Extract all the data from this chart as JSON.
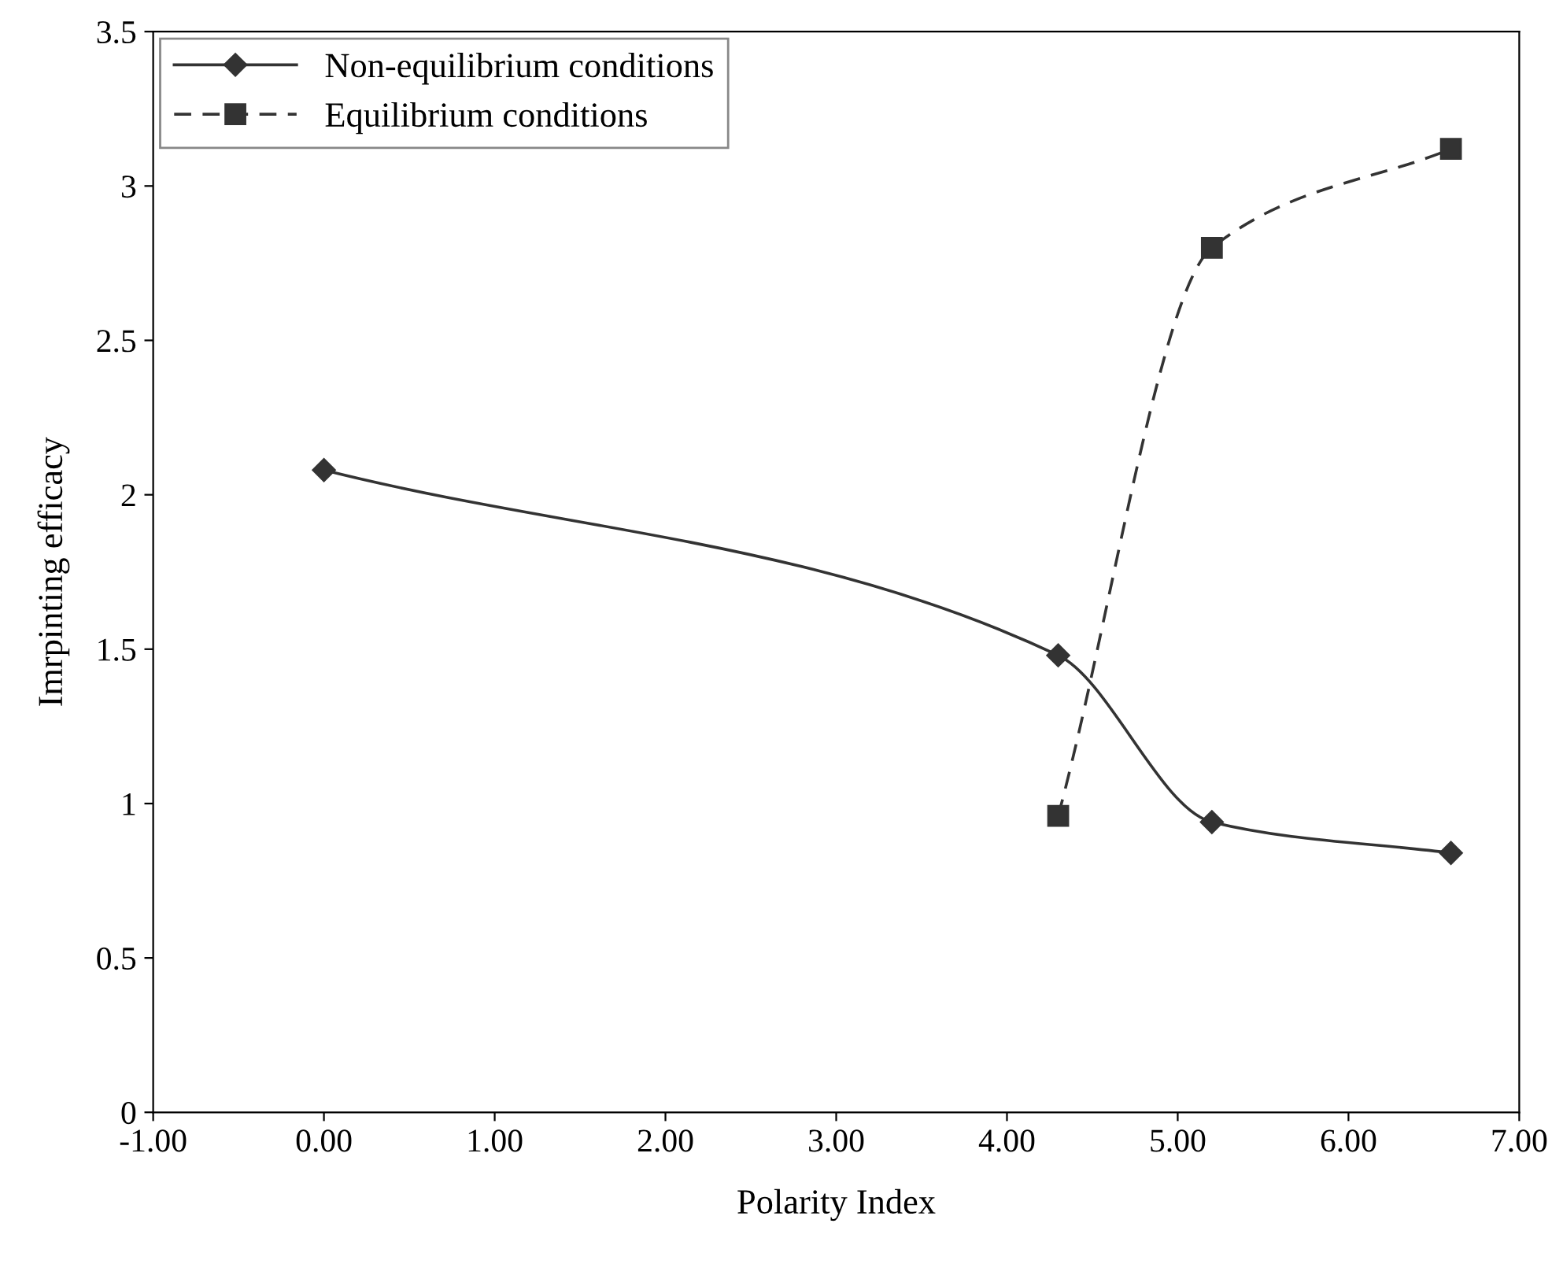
{
  "chart_data": {
    "type": "line",
    "xlabel": "Polarity Index",
    "ylabel": "Imrpinting efficacy",
    "xlim": [
      -1,
      7
    ],
    "ylim": [
      0,
      3.5
    ],
    "xticks": [
      {
        "value": -1,
        "label": "-1.00"
      },
      {
        "value": 0,
        "label": "0.00"
      },
      {
        "value": 1,
        "label": "1.00"
      },
      {
        "value": 2,
        "label": "2.00"
      },
      {
        "value": 3,
        "label": "3.00"
      },
      {
        "value": 4,
        "label": "4.00"
      },
      {
        "value": 5,
        "label": "5.00"
      },
      {
        "value": 6,
        "label": "6.00"
      },
      {
        "value": 7,
        "label": "7.00"
      }
    ],
    "yticks": [
      0,
      0.5,
      1,
      1.5,
      2,
      2.5,
      3,
      3.5
    ],
    "grid": false,
    "legend": "top left",
    "series": [
      {
        "name": "Non-equilibrium conditions",
        "color": "#333333",
        "marker": "diamond",
        "line_style": "solid",
        "x": [
          0,
          4.3,
          5.2,
          6.6
        ],
        "values": [
          2.08,
          1.48,
          0.94,
          0.84
        ]
      },
      {
        "name": "Equilibrium conditions",
        "color": "#333333",
        "marker": "square",
        "line_style": "dashed",
        "x": [
          4.3,
          5.2,
          6.6
        ],
        "values": [
          0.96,
          2.8,
          3.12
        ]
      }
    ]
  }
}
